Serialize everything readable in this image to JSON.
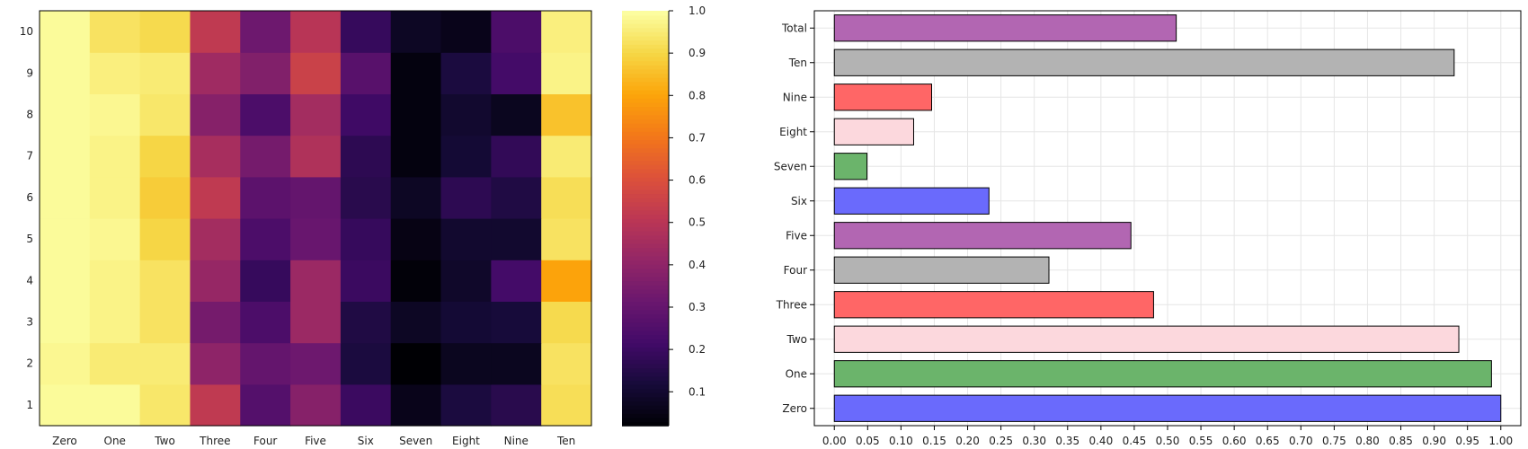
{
  "chart_data": [
    {
      "type": "heatmap",
      "title": "",
      "xlabel": "",
      "ylabel": "",
      "x": [
        "Zero",
        "One",
        "Two",
        "Three",
        "Four",
        "Five",
        "Six",
        "Seven",
        "Eight",
        "Nine",
        "Ten"
      ],
      "y": [
        "1",
        "2",
        "3",
        "4",
        "5",
        "6",
        "7",
        "8",
        "9",
        "10"
      ],
      "colorscale": "inferno",
      "clim": [
        0.02,
        1.0
      ],
      "colorbar_ticks": [
        "0.1",
        "0.2",
        "0.3",
        "0.4",
        "0.5",
        "0.6",
        "0.7",
        "0.8",
        "0.9",
        "1.0"
      ],
      "values": [
        [
          0.99,
          0.99,
          0.94,
          0.52,
          0.26,
          0.38,
          0.2,
          0.06,
          0.13,
          0.16,
          0.92
        ],
        [
          0.98,
          0.95,
          0.95,
          0.4,
          0.3,
          0.32,
          0.13,
          0.02,
          0.07,
          0.07,
          0.93
        ],
        [
          0.99,
          0.97,
          0.93,
          0.34,
          0.24,
          0.43,
          0.14,
          0.08,
          0.11,
          0.12,
          0.91
        ],
        [
          0.99,
          0.97,
          0.93,
          0.42,
          0.19,
          0.43,
          0.2,
          0.03,
          0.09,
          0.22,
          0.8
        ],
        [
          0.99,
          0.98,
          0.9,
          0.45,
          0.24,
          0.31,
          0.19,
          0.05,
          0.1,
          0.1,
          0.93
        ],
        [
          0.99,
          0.97,
          0.88,
          0.52,
          0.28,
          0.3,
          0.16,
          0.08,
          0.17,
          0.14,
          0.92
        ],
        [
          0.99,
          0.97,
          0.9,
          0.46,
          0.34,
          0.48,
          0.17,
          0.04,
          0.11,
          0.18,
          0.95
        ],
        [
          0.99,
          0.98,
          0.94,
          0.38,
          0.24,
          0.45,
          0.21,
          0.04,
          0.1,
          0.07,
          0.86
        ],
        [
          0.99,
          0.96,
          0.95,
          0.44,
          0.37,
          0.55,
          0.27,
          0.04,
          0.13,
          0.22,
          0.97
        ],
        [
          0.99,
          0.93,
          0.91,
          0.52,
          0.32,
          0.5,
          0.19,
          0.08,
          0.06,
          0.24,
          0.96
        ]
      ]
    },
    {
      "type": "bar",
      "orientation": "horizontal",
      "title": "",
      "xlabel": "",
      "ylabel": "",
      "categories": [
        "Zero",
        "One",
        "Two",
        "Three",
        "Four",
        "Five",
        "Six",
        "Seven",
        "Eight",
        "Nine",
        "Ten",
        "Total"
      ],
      "values": [
        1.0,
        0.986,
        0.937,
        0.479,
        0.322,
        0.445,
        0.232,
        0.049,
        0.119,
        0.146,
        0.93,
        0.513
      ],
      "colors": [
        "#6a6afc",
        "#6bb46b",
        "#fcd8dd",
        "#ff6666",
        "#b3b3b3",
        "#b266b2",
        "#6a6afc",
        "#6bb46b",
        "#fcd8dd",
        "#ff6666",
        "#b3b3b3",
        "#b266b2"
      ],
      "xlim": [
        -0.03,
        1.03
      ],
      "xticks": [
        "0.00",
        "0.05",
        "0.10",
        "0.15",
        "0.20",
        "0.25",
        "0.30",
        "0.35",
        "0.40",
        "0.45",
        "0.50",
        "0.55",
        "0.60",
        "0.65",
        "0.70",
        "0.75",
        "0.80",
        "0.85",
        "0.90",
        "0.95",
        "1.00"
      ],
      "grid": true
    }
  ]
}
